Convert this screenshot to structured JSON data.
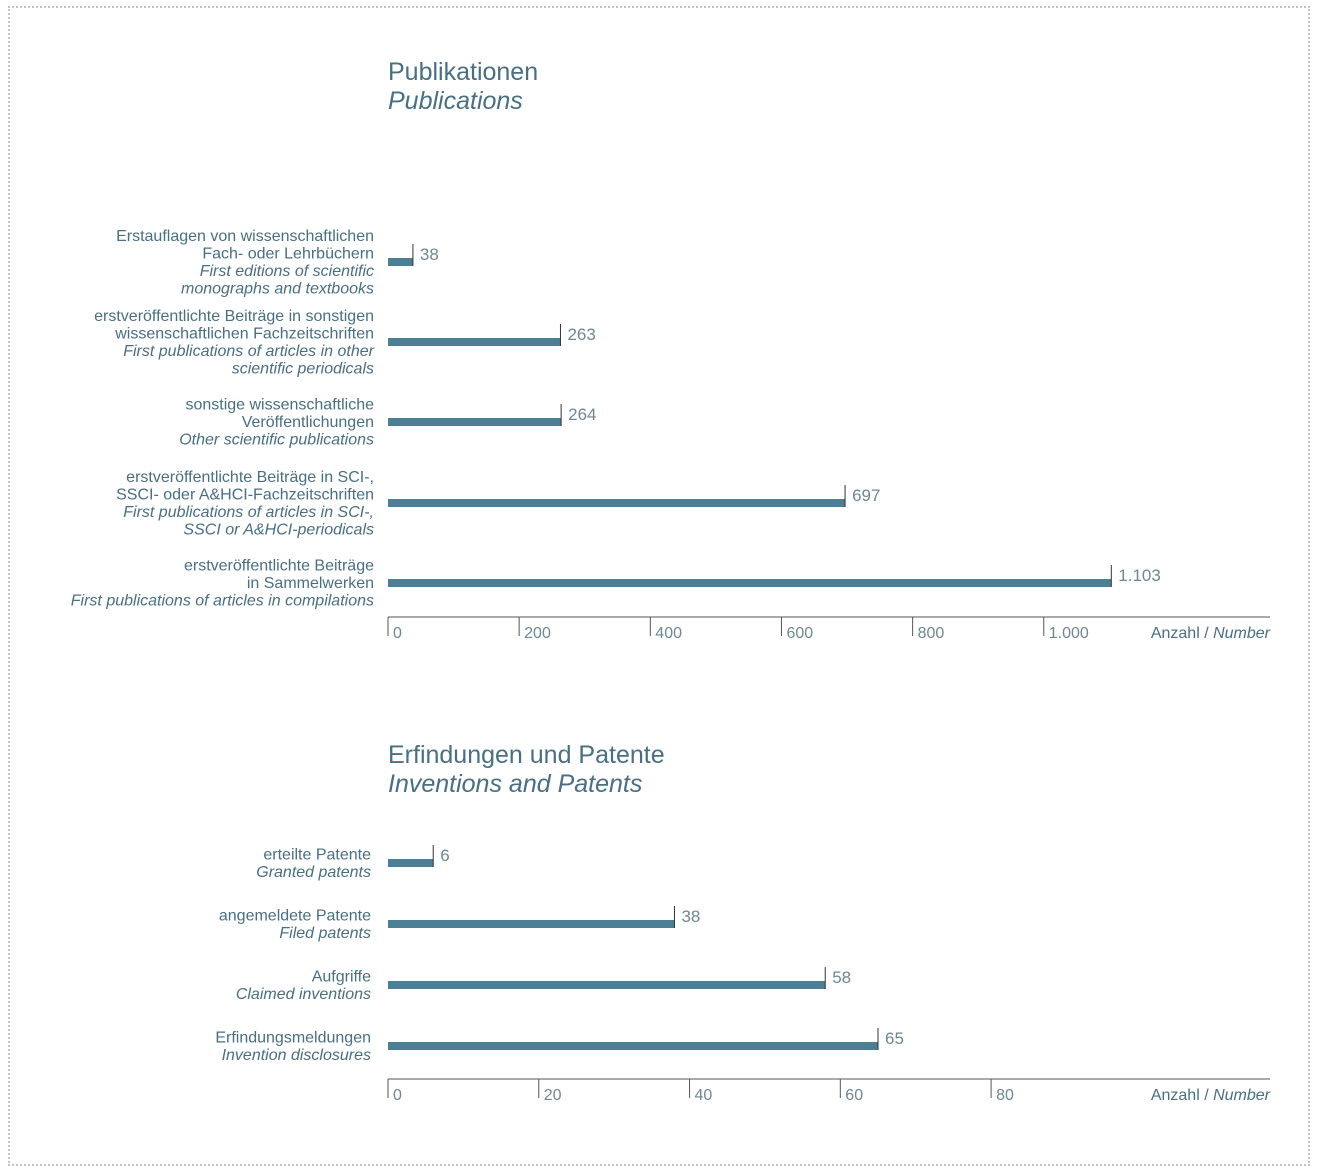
{
  "chart_data": [
    {
      "type": "bar",
      "orientation": "horizontal",
      "title": "Publikationen",
      "subtitle": "Publications",
      "categories": [
        {
          "de": [
            "Erstauflagen von wissenschaftlichen",
            "Fach- oder Lehrbüchern"
          ],
          "en": [
            "First editions of scientific",
            "monographs and textbooks"
          ]
        },
        {
          "de": [
            "erstveröffentlichte Beiträge in sonstigen",
            "wissenschaftlichen Fachzeitschriften"
          ],
          "en": [
            "First publications of articles in other",
            "scientific periodicals"
          ]
        },
        {
          "de": [
            "sonstige wissenschaftliche",
            "Veröffentlichungen"
          ],
          "en": [
            "Other scientific publications"
          ]
        },
        {
          "de": [
            "erstveröffentlichte Beiträge in SCI-,",
            "SSCI- oder A&HCI-Fachzeitschriften"
          ],
          "en": [
            "First publications of articles in SCI-,",
            "SSCI or A&HCI-periodicals"
          ]
        },
        {
          "de": [
            "erstveröffentlichte Beiträge",
            "in Sammelwerken"
          ],
          "en": [
            "First publications of articles in compilations"
          ]
        }
      ],
      "values": [
        38,
        263,
        264,
        697,
        1103
      ],
      "value_labels": [
        "38",
        "263",
        "264",
        "697",
        "1.103"
      ],
      "xlim": [
        0,
        1345
      ],
      "ticks": [
        0,
        200,
        400,
        600,
        800,
        1000
      ],
      "tick_labels": [
        "0",
        "200",
        "400",
        "600",
        "800",
        "1.000"
      ],
      "xlabel_de": "Anzahl / ",
      "xlabel_en": "Number",
      "grid": false,
      "bar_color": "#4a7f96"
    },
    {
      "type": "bar",
      "orientation": "horizontal",
      "title": "Erfindungen und Patente",
      "subtitle": "Inventions and Patents",
      "categories": [
        {
          "de": [
            "erteilte Patente"
          ],
          "en": [
            "Granted patents"
          ]
        },
        {
          "de": [
            "angemeldete Patente"
          ],
          "en": [
            "Filed patents"
          ]
        },
        {
          "de": [
            "Aufgriffe"
          ],
          "en": [
            "Claimed inventions"
          ]
        },
        {
          "de": [
            "Erfindungsmeldungen"
          ],
          "en": [
            "Invention disclosures"
          ]
        }
      ],
      "values": [
        6,
        38,
        58,
        65
      ],
      "value_labels": [
        "6",
        "38",
        "58",
        "65"
      ],
      "xlim": [
        0,
        117
      ],
      "ticks": [
        0,
        20,
        40,
        60,
        80
      ],
      "tick_labels": [
        "0",
        "20",
        "40",
        "60",
        "80"
      ],
      "xlabel_de": "Anzahl / ",
      "xlabel_en": "Number",
      "grid": false,
      "bar_color": "#4a7f96"
    }
  ]
}
